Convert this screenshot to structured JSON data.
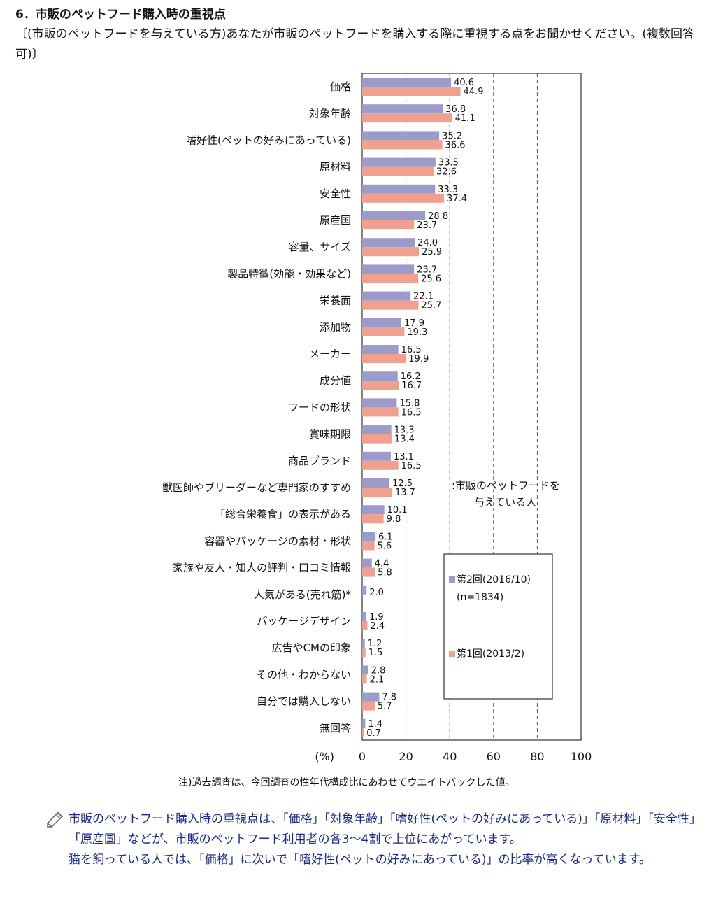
{
  "heading": {
    "title": "6．市販のペットフード購入時の重視点",
    "question": "〔(市販のペットフードを与えている方)あなたが市販のペットフードを購入する際に重視する点をお聞かせください。(複数回答可)〕"
  },
  "chart_data": {
    "type": "bar",
    "orientation": "horizontal",
    "categories": [
      "価格",
      "対象年齢",
      "嗜好性(ペットの好みにあっている)",
      "原材料",
      "安全性",
      "原産国",
      "容量、サイズ",
      "製品特徴(効能・効果など)",
      "栄養面",
      "添加物",
      "メーカー",
      "成分値",
      "フードの形状",
      "賞味期限",
      "商品ブランド",
      "獣医師やブリーダーなど専門家のすすめ",
      "「総合栄養食」の表示がある",
      "容器やパッケージの素材・形状",
      "家族や友人・知人の評判・口コミ情報",
      "人気がある(売れ筋)*",
      "パッケージデザイン",
      "広告やCMの印象",
      "その他・わからない",
      "自分では購入しない",
      "無回答"
    ],
    "series": [
      {
        "name": "第2回(2016/10)",
        "color": "#9c9ccc",
        "values": [
          40.6,
          36.8,
          35.2,
          33.5,
          33.3,
          28.8,
          24.0,
          23.7,
          22.1,
          17.9,
          16.5,
          16.2,
          15.8,
          13.3,
          13.1,
          12.5,
          10.1,
          6.1,
          4.4,
          2.0,
          1.9,
          1.2,
          2.8,
          7.8,
          1.4
        ],
        "labels": [
          "40.6",
          "36.8",
          "35.2",
          "33.5",
          "33.3",
          "28.8",
          "24.0",
          "23.7",
          "22.1",
          "17.9",
          "16.5",
          "16.2",
          "15.8",
          "13.3",
          "13.1",
          "12.5",
          "10.1",
          "6.1",
          "4.4",
          "2.0",
          "1.9",
          "1.2",
          "2.8",
          "7.8",
          "1.4"
        ]
      },
      {
        "name": "第1回(2013/2)",
        "color": "#f0a08c",
        "values": [
          44.9,
          41.1,
          36.6,
          32.6,
          37.4,
          23.7,
          25.9,
          25.6,
          25.7,
          19.3,
          19.9,
          16.7,
          16.5,
          13.4,
          16.5,
          13.7,
          9.8,
          5.6,
          5.8,
          null,
          2.4,
          1.5,
          2.1,
          5.7,
          0.7
        ],
        "labels": [
          "44.9",
          "41.1",
          "36.6",
          "32.6",
          "37.4",
          "23.7",
          "25.9",
          "25.6",
          "25.7",
          "19.3",
          "19.9",
          "16.7",
          "16.5",
          "13.4",
          "16.5",
          "13.7",
          "9.8",
          "5.6",
          "5.8",
          "",
          "2.4",
          "1.5",
          "2.1",
          "5.7",
          "0.7"
        ]
      }
    ],
    "xlim": [
      0,
      100
    ],
    "xticks": [
      "0",
      "20",
      "40",
      "60",
      "80",
      "100"
    ],
    "xlabel": "(%)",
    "grid": "vertical-dashed",
    "annotation": ":市販のペットフードを\n与えている人",
    "legend": {
      "position": "right-inside",
      "entries": [
        "第2回(2016/10)\n(n=1834)",
        "第1回(2013/2)"
      ]
    }
  },
  "note": "注)過去調査は、今回調査の性年代構成比にあわせてウエイトバックした値。",
  "summary": {
    "paragraph1": "市販のペットフード購入時の重視点は、「価格」「対象年齢」「嗜好性(ペットの好みにあっている)」「原材料」「安全性」「原産国」などが、市販のペットフード利用者の各3〜4割で上位にあがっています。",
    "paragraph2": "猫を飼っている人では、「価格」に次いで「嗜好性(ペットの好みにあっている)」の比率が高くなっています。"
  },
  "icons": {
    "summary_bullet": "pencil-icon"
  }
}
